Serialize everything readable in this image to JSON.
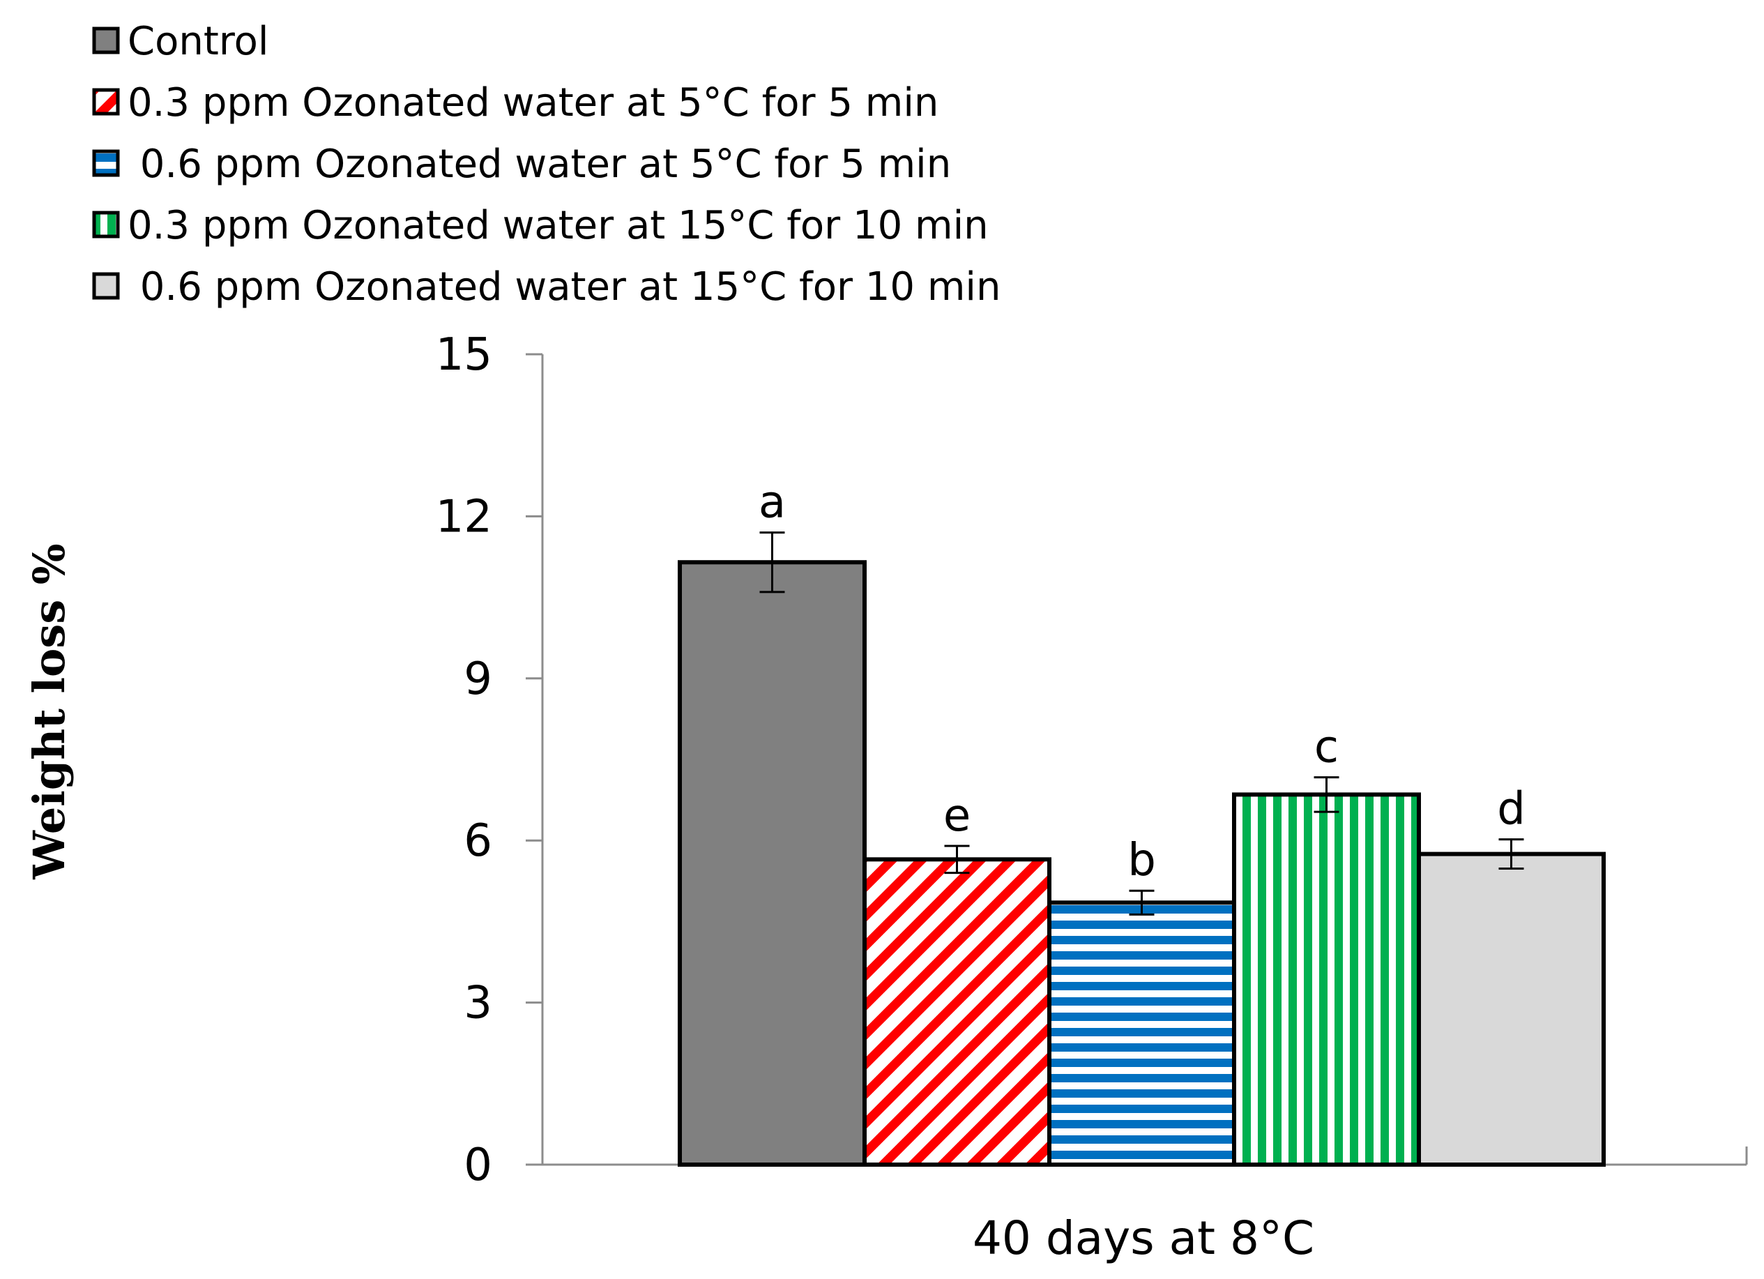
{
  "chart_data": {
    "type": "bar",
    "title": "",
    "xlabel": "40 days at 8°C",
    "ylabel": "Weight loss %",
    "ylim": [
      0,
      15
    ],
    "yticks": [
      0,
      3,
      6,
      9,
      12,
      15
    ],
    "grid": false,
    "legend_position": "top-left",
    "category": "40 days at 8°C",
    "series": [
      {
        "name": "Control",
        "value": 11.15,
        "error": 0.55,
        "letter": "a",
        "fill": "#808080",
        "pattern": "solid"
      },
      {
        "name": "0.3 ppm Ozonated water at 5°C for 5 min",
        "value": 5.65,
        "error": 0.25,
        "letter": "e",
        "fill": "#ff0000",
        "pattern": "diagonal-stripes"
      },
      {
        "name": " 0.6 ppm Ozonated water at 5°C for 5 min",
        "value": 4.85,
        "error": 0.22,
        "letter": "b",
        "fill": "#0070c0",
        "pattern": "horizontal-stripes"
      },
      {
        "name": "0.3 ppm Ozonated water at 15°C for 10 min",
        "value": 6.85,
        "error": 0.32,
        "letter": "c",
        "fill": "#00b050",
        "pattern": "vertical-stripes"
      },
      {
        "name": " 0.6 ppm Ozonated water at 15°C for 10 min",
        "value": 5.75,
        "error": 0.27,
        "letter": "d",
        "fill": "#d9d9d9",
        "pattern": "solid"
      }
    ]
  }
}
